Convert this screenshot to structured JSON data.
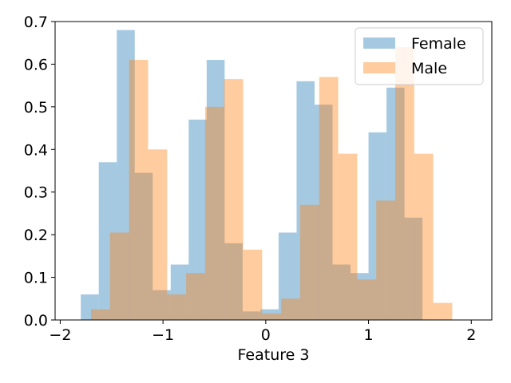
{
  "chart_data": {
    "type": "histogram",
    "title": "",
    "xlabel": "Feature 3",
    "ylabel": "",
    "xlim": [
      -2.05,
      2.2
    ],
    "ylim": [
      0,
      0.7
    ],
    "xticks": [
      -2,
      -1,
      0,
      1,
      2
    ],
    "xtick_labels": [
      "−2",
      "−1",
      "0",
      "1",
      "2"
    ],
    "yticks": [
      0.0,
      0.1,
      0.2,
      0.3,
      0.4,
      0.5,
      0.6,
      0.7
    ],
    "ytick_labels": [
      "0.0",
      "0.1",
      "0.2",
      "0.3",
      "0.4",
      "0.5",
      "0.6",
      "0.7"
    ],
    "grid": false,
    "legend_position": "top-right",
    "series": [
      {
        "name": "Female",
        "color": "#1f77b4",
        "alpha": 0.4,
        "bin_edges": [
          -1.8,
          -1.625,
          -1.45,
          -1.275,
          -1.1,
          -0.925,
          -0.75,
          -0.575,
          -0.4,
          -0.225,
          -0.05,
          0.125,
          0.3,
          0.475,
          0.65,
          0.825,
          1.0,
          1.175,
          1.35,
          1.525
        ],
        "values": [
          0.06,
          0.37,
          0.68,
          0.345,
          0.07,
          0.13,
          0.47,
          0.61,
          0.18,
          0.02,
          0.025,
          0.205,
          0.56,
          0.505,
          0.13,
          0.11,
          0.44,
          0.545,
          0.24
        ]
      },
      {
        "name": "Male",
        "color": "#ff7f0e",
        "alpha": 0.4,
        "bin_edges": [
          -1.7,
          -1.515,
          -1.33,
          -1.145,
          -0.96,
          -0.775,
          -0.59,
          -0.405,
          -0.22,
          -0.035,
          0.15,
          0.335,
          0.52,
          0.705,
          0.89,
          1.075,
          1.26,
          1.445,
          1.63,
          1.815
        ],
        "values": [
          0.025,
          0.205,
          0.61,
          0.4,
          0.06,
          0.11,
          0.5,
          0.565,
          0.165,
          0.015,
          0.05,
          0.27,
          0.57,
          0.39,
          0.095,
          0.28,
          0.64,
          0.39,
          0.04
        ]
      }
    ]
  }
}
